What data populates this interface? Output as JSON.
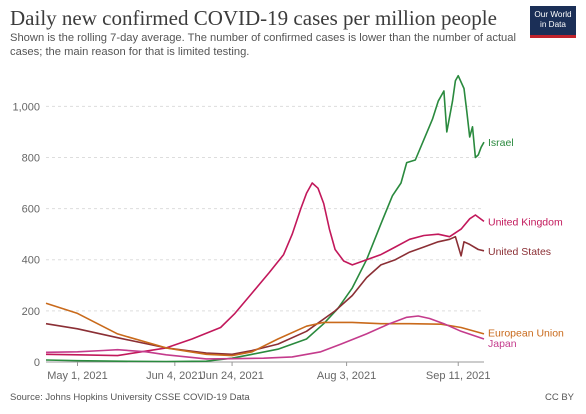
{
  "header": {
    "title": "Daily new confirmed COVID-19 cases per million people",
    "subtitle": "Shown is the rolling 7-day average. The number of confirmed cases is lower than the number of actual cases; the main reason for that is limited testing.",
    "logo_line1": "Our World",
    "logo_line2": "in Data"
  },
  "footer": {
    "source": "Source: Johns Hopkins University CSSE COVID-19 Data",
    "license": "CC BY"
  },
  "chart_data": {
    "type": "line",
    "title": "Daily new confirmed COVID-19 cases per million people",
    "subtitle": "Shown is the rolling 7-day average. The number of confirmed cases is lower than the number of actual cases; the main reason for that is limited testing.",
    "xlabel": "",
    "ylabel": "",
    "xlim": [
      "2021-04-20",
      "2021-09-20"
    ],
    "ylim": [
      0,
      1150
    ],
    "y_ticks": [
      0,
      200,
      400,
      600,
      800,
      1000
    ],
    "y_tick_labels": [
      "0",
      "200",
      "400",
      "600",
      "800",
      "1,000"
    ],
    "x_ticks": [
      "2021-05-01",
      "2021-06-04",
      "2021-06-24",
      "2021-08-03",
      "2021-09-11"
    ],
    "x_tick_labels": [
      "May 1, 2021",
      "Jun 4, 2021",
      "Jun 24, 2021",
      "Aug 3, 2021",
      "Sep 11, 2021"
    ],
    "grid": "horizontal dashed",
    "legend": "labels at line ends (right)",
    "series": [
      {
        "name": "Israel",
        "color": "#2a8a3e",
        "points": [
          [
            "2021-04-20",
            8
          ],
          [
            "2021-05-01",
            5
          ],
          [
            "2021-05-15",
            3
          ],
          [
            "2021-06-01",
            2
          ],
          [
            "2021-06-15",
            3
          ],
          [
            "2021-06-24",
            15
          ],
          [
            "2021-07-01",
            30
          ],
          [
            "2021-07-10",
            50
          ],
          [
            "2021-07-20",
            90
          ],
          [
            "2021-07-26",
            150
          ],
          [
            "2021-07-31",
            210
          ],
          [
            "2021-08-05",
            290
          ],
          [
            "2021-08-10",
            400
          ],
          [
            "2021-08-15",
            540
          ],
          [
            "2021-08-19",
            650
          ],
          [
            "2021-08-22",
            700
          ],
          [
            "2021-08-24",
            780
          ],
          [
            "2021-08-27",
            790
          ],
          [
            "2021-08-30",
            870
          ],
          [
            "2021-09-02",
            950
          ],
          [
            "2021-09-04",
            1020
          ],
          [
            "2021-09-06",
            1060
          ],
          [
            "2021-09-07",
            900
          ],
          [
            "2021-09-09",
            1020
          ],
          [
            "2021-09-10",
            1100
          ],
          [
            "2021-09-11",
            1120
          ],
          [
            "2021-09-13",
            1070
          ],
          [
            "2021-09-14",
            980
          ],
          [
            "2021-09-15",
            880
          ],
          [
            "2021-09-16",
            920
          ],
          [
            "2021-09-17",
            800
          ],
          [
            "2021-09-18",
            810
          ],
          [
            "2021-09-19",
            840
          ],
          [
            "2021-09-20",
            860
          ]
        ]
      },
      {
        "name": "United Kingdom",
        "color": "#c2185b",
        "points": [
          [
            "2021-04-20",
            30
          ],
          [
            "2021-05-01",
            28
          ],
          [
            "2021-05-15",
            25
          ],
          [
            "2021-06-01",
            55
          ],
          [
            "2021-06-10",
            90
          ],
          [
            "2021-06-20",
            135
          ],
          [
            "2021-06-25",
            190
          ],
          [
            "2021-07-01",
            270
          ],
          [
            "2021-07-07",
            350
          ],
          [
            "2021-07-12",
            420
          ],
          [
            "2021-07-15",
            500
          ],
          [
            "2021-07-18",
            600
          ],
          [
            "2021-07-20",
            660
          ],
          [
            "2021-07-22",
            700
          ],
          [
            "2021-07-24",
            680
          ],
          [
            "2021-07-26",
            620
          ],
          [
            "2021-07-28",
            520
          ],
          [
            "2021-07-30",
            440
          ],
          [
            "2021-08-02",
            395
          ],
          [
            "2021-08-05",
            380
          ],
          [
            "2021-08-10",
            400
          ],
          [
            "2021-08-15",
            420
          ],
          [
            "2021-08-20",
            450
          ],
          [
            "2021-08-25",
            480
          ],
          [
            "2021-08-30",
            495
          ],
          [
            "2021-09-04",
            500
          ],
          [
            "2021-09-08",
            490
          ],
          [
            "2021-09-12",
            520
          ],
          [
            "2021-09-15",
            560
          ],
          [
            "2021-09-17",
            575
          ],
          [
            "2021-09-20",
            550
          ]
        ]
      },
      {
        "name": "United States",
        "color": "#8b2f35",
        "points": [
          [
            "2021-04-20",
            150
          ],
          [
            "2021-05-01",
            130
          ],
          [
            "2021-05-15",
            95
          ],
          [
            "2021-06-01",
            55
          ],
          [
            "2021-06-15",
            35
          ],
          [
            "2021-06-24",
            30
          ],
          [
            "2021-07-01",
            45
          ],
          [
            "2021-07-10",
            70
          ],
          [
            "2021-07-20",
            120
          ],
          [
            "2021-07-30",
            200
          ],
          [
            "2021-08-05",
            260
          ],
          [
            "2021-08-10",
            330
          ],
          [
            "2021-08-15",
            380
          ],
          [
            "2021-08-20",
            400
          ],
          [
            "2021-08-25",
            430
          ],
          [
            "2021-08-30",
            450
          ],
          [
            "2021-09-04",
            470
          ],
          [
            "2021-09-08",
            480
          ],
          [
            "2021-09-10",
            490
          ],
          [
            "2021-09-12",
            415
          ],
          [
            "2021-09-13",
            470
          ],
          [
            "2021-09-15",
            460
          ],
          [
            "2021-09-18",
            440
          ],
          [
            "2021-09-20",
            435
          ]
        ]
      },
      {
        "name": "European Union",
        "color": "#c96a1b",
        "points": [
          [
            "2021-04-20",
            230
          ],
          [
            "2021-05-01",
            190
          ],
          [
            "2021-05-15",
            110
          ],
          [
            "2021-06-01",
            55
          ],
          [
            "2021-06-15",
            30
          ],
          [
            "2021-06-24",
            25
          ],
          [
            "2021-07-01",
            40
          ],
          [
            "2021-07-10",
            90
          ],
          [
            "2021-07-20",
            140
          ],
          [
            "2021-07-26",
            155
          ],
          [
            "2021-08-05",
            155
          ],
          [
            "2021-08-15",
            150
          ],
          [
            "2021-08-25",
            150
          ],
          [
            "2021-09-05",
            148
          ],
          [
            "2021-09-12",
            135
          ],
          [
            "2021-09-20",
            110
          ]
        ]
      },
      {
        "name": "Japan",
        "color": "#c43b8c",
        "points": [
          [
            "2021-04-20",
            38
          ],
          [
            "2021-05-01",
            40
          ],
          [
            "2021-05-10",
            45
          ],
          [
            "2021-05-15",
            48
          ],
          [
            "2021-05-25",
            40
          ],
          [
            "2021-06-01",
            28
          ],
          [
            "2021-06-15",
            12
          ],
          [
            "2021-06-24",
            13
          ],
          [
            "2021-07-05",
            15
          ],
          [
            "2021-07-15",
            20
          ],
          [
            "2021-07-25",
            40
          ],
          [
            "2021-08-01",
            70
          ],
          [
            "2021-08-10",
            110
          ],
          [
            "2021-08-18",
            150
          ],
          [
            "2021-08-24",
            175
          ],
          [
            "2021-08-28",
            180
          ],
          [
            "2021-09-01",
            170
          ],
          [
            "2021-09-06",
            150
          ],
          [
            "2021-09-12",
            120
          ],
          [
            "2021-09-20",
            90
          ]
        ]
      }
    ],
    "series_labels": [
      {
        "name": "Israel",
        "at": [
          "2021-09-20",
          860
        ]
      },
      {
        "name": "United Kingdom",
        "at": [
          "2021-09-20",
          550
        ]
      },
      {
        "name": "United States",
        "at": [
          "2021-09-20",
          435
        ]
      },
      {
        "name": "European Union",
        "at": [
          "2021-09-20",
          115
        ]
      },
      {
        "name": "Japan",
        "at": [
          "2021-09-20",
          75
        ]
      }
    ]
  }
}
